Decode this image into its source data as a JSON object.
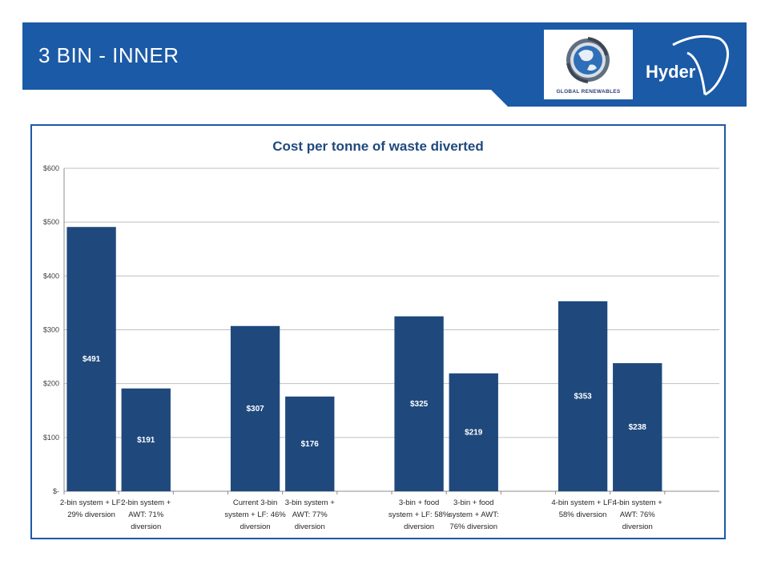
{
  "slide": {
    "title": "3 BIN - INNER",
    "logos": {
      "global_renewables_text": "GLOBAL RENEWABLES",
      "hyder_text": "Hyder"
    },
    "colors": {
      "header": "#1b5aa6",
      "bar": "#1f497d",
      "title": "#1f497d"
    }
  },
  "chart_data": {
    "type": "bar",
    "title": "Cost per tonne of waste diverted",
    "xlabel": "",
    "ylabel": "",
    "ylim": [
      0,
      600
    ],
    "yticks": [
      0,
      100,
      200,
      300,
      400,
      500,
      600
    ],
    "ytick_labels": [
      "$-",
      "$100",
      "$200",
      "$300",
      "$400",
      "$500",
      "$600"
    ],
    "grid": true,
    "legend": "none",
    "groups": [
      {
        "items": [
          {
            "label": [
              "2-bin system + LF:",
              "29% diversion"
            ],
            "value": 491,
            "value_label": "$491"
          },
          {
            "label": [
              "2-bin system +",
              "AWT: 71%",
              "diversion"
            ],
            "value": 191,
            "value_label": "$191"
          }
        ]
      },
      {
        "items": [
          {
            "label": [
              "Current 3-bin",
              "system + LF: 46%",
              "diversion"
            ],
            "value": 307,
            "value_label": "$307"
          },
          {
            "label": [
              "3-bin system +",
              "AWT: 77%",
              "diversion"
            ],
            "value": 176,
            "value_label": "$176"
          }
        ]
      },
      {
        "items": [
          {
            "label": [
              "3-bin + food",
              "system + LF: 58%",
              "diversion"
            ],
            "value": 325,
            "value_label": "$325"
          },
          {
            "label": [
              "3-bin + food",
              "system + AWT:",
              "76% diversion"
            ],
            "value": 219,
            "value_label": "$219"
          }
        ]
      },
      {
        "items": [
          {
            "label": [
              "4-bin system + LF:",
              "58% diversion"
            ],
            "value": 353,
            "value_label": "$353"
          },
          {
            "label": [
              "4-bin system +",
              "AWT: 76%",
              "diversion"
            ],
            "value": 238,
            "value_label": "$238"
          }
        ]
      }
    ]
  }
}
